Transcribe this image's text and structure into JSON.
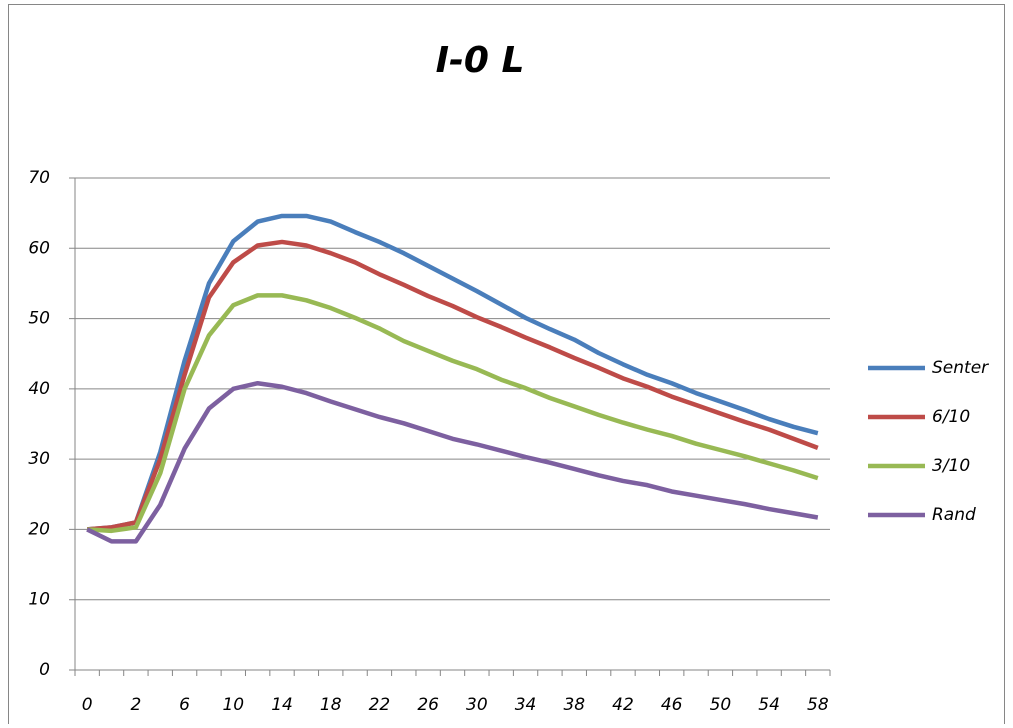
{
  "chart_data": {
    "type": "line",
    "title": "I-0 L",
    "categories": [
      0,
      null,
      2,
      null,
      6,
      null,
      10,
      null,
      14,
      null,
      18,
      null,
      22,
      null,
      26,
      null,
      30,
      null,
      34,
      null,
      38,
      null,
      42,
      null,
      46,
      null,
      50,
      null,
      54,
      null,
      58
    ],
    "series": [
      {
        "name": "Senter",
        "color": "#4a7ebb",
        "values": [
          20,
          20.3,
          21,
          31,
          44,
          55,
          61,
          63.8,
          64.6,
          64.6,
          63.8,
          62.3,
          60.9,
          59.3,
          57.5,
          55.7,
          53.9,
          52,
          50.1,
          48.5,
          47,
          45.1,
          43.5,
          42,
          40.8,
          39.4,
          38.2,
          37,
          35.7,
          34.6,
          33.7
        ]
      },
      {
        "name": "6/10",
        "color": "#be4b48",
        "values": [
          20,
          20.3,
          21,
          30,
          42,
          53,
          58,
          60.4,
          60.9,
          60.4,
          59.3,
          58,
          56.3,
          54.8,
          53.2,
          51.8,
          50.2,
          48.8,
          47.3,
          45.9,
          44.4,
          43,
          41.5,
          40.3,
          38.9,
          37.7,
          36.5,
          35.3,
          34.2,
          32.9,
          31.6
        ]
      },
      {
        "name": "3/10",
        "color": "#98b954",
        "values": [
          20,
          19.8,
          20.3,
          28,
          40,
          47.6,
          51.9,
          53.3,
          53.3,
          52.6,
          51.5,
          50.1,
          48.6,
          46.8,
          45.4,
          44,
          42.8,
          41.3,
          40.1,
          38.7,
          37.5,
          36.3,
          35.2,
          34.2,
          33.3,
          32.2,
          31.3,
          30.4,
          29.4,
          28.4,
          27.3
        ]
      },
      {
        "name": "Rand",
        "color": "#7d60a0",
        "values": [
          20,
          18.3,
          18.3,
          23.5,
          31.5,
          37.2,
          40,
          40.8,
          40.3,
          39.4,
          38.2,
          37.1,
          36,
          35.1,
          34,
          32.9,
          32.1,
          31.2,
          30.3,
          29.5,
          28.6,
          27.7,
          26.9,
          26.3,
          25.4,
          24.8,
          24.2,
          23.6,
          22.9,
          22.3,
          21.7
        ]
      }
    ],
    "ylim": [
      0,
      70
    ],
    "yticks": [
      0,
      10,
      20,
      30,
      40,
      50,
      60,
      70
    ],
    "grid": true,
    "legend": "right"
  }
}
